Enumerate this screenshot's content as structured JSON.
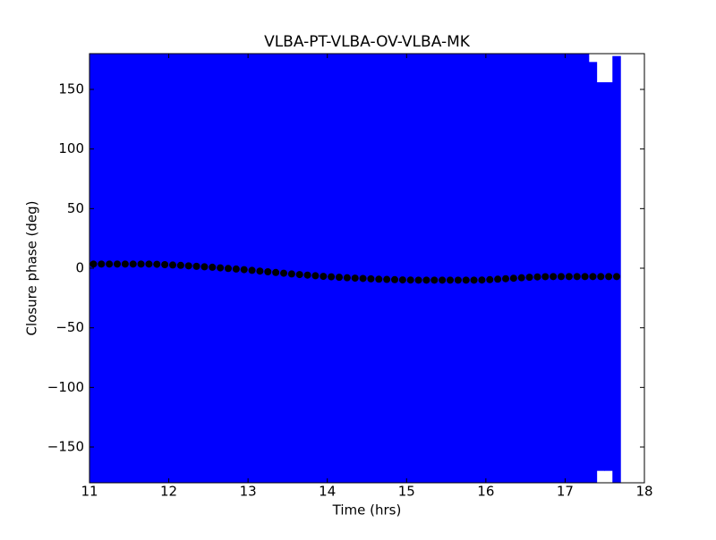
{
  "chart_data": {
    "type": "errorbar",
    "title": "VLBA-PT-VLBA-OV-VLBA-MK",
    "xlabel": "Time (hrs)",
    "ylabel": "Closure phase (deg)",
    "x": [
      11.05,
      11.15,
      11.25,
      11.35,
      11.45,
      11.55,
      11.65,
      11.75,
      11.85,
      11.95,
      12.05,
      12.15,
      12.25,
      12.35,
      12.45,
      12.55,
      12.65,
      12.75,
      12.85,
      12.95,
      13.05,
      13.15,
      13.25,
      13.35,
      13.45,
      13.55,
      13.65,
      13.75,
      13.85,
      13.95,
      14.05,
      14.15,
      14.25,
      14.35,
      14.45,
      14.55,
      14.65,
      14.75,
      14.85,
      14.95,
      15.05,
      15.15,
      15.25,
      15.35,
      15.45,
      15.55,
      15.65,
      15.75,
      15.85,
      15.95,
      16.05,
      16.15,
      16.25,
      16.35,
      16.45,
      16.55,
      16.65,
      16.75,
      16.85,
      16.95,
      17.05,
      17.15,
      17.25,
      17.35,
      17.45,
      17.55,
      17.65
    ],
    "values": [
      3.5,
      3.5,
      3.5,
      3.5,
      3.5,
      3.5,
      3.5,
      3.5,
      3.3,
      3.0,
      2.7,
      2.4,
      2.0,
      1.6,
      1.2,
      0.8,
      0.3,
      -0.2,
      -0.7,
      -1.2,
      -1.8,
      -2.4,
      -3.0,
      -3.6,
      -4.2,
      -4.8,
      -5.3,
      -5.8,
      -6.3,
      -6.8,
      -7.2,
      -7.6,
      -8.0,
      -8.3,
      -8.6,
      -8.9,
      -9.2,
      -9.4,
      -9.6,
      -9.8,
      -9.9,
      -10.0,
      -10.0,
      -10.0,
      -10.0,
      -10.0,
      -10.0,
      -10.0,
      -10.0,
      -9.9,
      -9.6,
      -9.2,
      -8.8,
      -8.4,
      -8.0,
      -7.6,
      -7.3,
      -7.1,
      -7.0,
      -7.0,
      -7.0,
      -7.0,
      -7.0,
      -7.0,
      -7.0,
      -7.0,
      -7.0
    ],
    "errors": [
      200,
      200,
      200,
      200,
      200,
      200,
      200,
      200,
      200,
      200,
      200,
      200,
      200,
      200,
      200,
      200,
      200,
      200,
      200,
      200,
      200,
      200,
      200,
      200,
      200,
      200,
      200,
      200,
      200,
      200,
      200,
      200,
      200,
      200,
      200,
      200,
      200,
      200,
      200,
      200,
      200,
      200,
      200,
      200,
      200,
      200,
      200,
      200,
      200,
      200,
      200,
      200,
      200,
      200,
      200,
      200,
      200,
      200,
      200,
      200,
      200,
      200,
      195,
      180,
      163,
      163,
      185
    ],
    "color": "#000000",
    "error_color": "#0000ff",
    "xlim": [
      11,
      18
    ],
    "ylim": [
      -180,
      180
    ],
    "xticks": [
      11,
      12,
      13,
      14,
      15,
      16,
      17,
      18
    ],
    "yticks": [
      {
        "value": -150,
        "label": "−150"
      },
      {
        "value": -100,
        "label": "−100"
      },
      {
        "value": -50,
        "label": "−50"
      },
      0,
      50,
      100,
      150
    ]
  }
}
